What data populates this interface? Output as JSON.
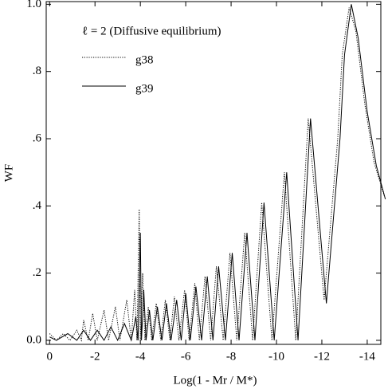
{
  "chart_data": {
    "type": "line",
    "annotation": "ℓ = 2 (Diffusive equilibrium)",
    "xlabel": "Log(1 - Mr / M*)",
    "ylabel": "WF",
    "xlim": [
      0.15,
      -14.6
    ],
    "ylim": [
      -0.012,
      1.008
    ],
    "xticks": [
      0,
      -2,
      -4,
      -6,
      -8,
      -10,
      -12,
      -14
    ],
    "yticks": [
      {
        "value": 0,
        "label": "0.0"
      },
      {
        "value": 0.2,
        "label": ".2"
      },
      {
        "value": 0.4,
        "label": ".4"
      },
      {
        "value": 0.6,
        "label": ".6"
      },
      {
        "value": 0.8,
        "label": ".8"
      },
      {
        "value": 1.0,
        "label": "1.0"
      }
    ],
    "series": [
      {
        "name": "g38",
        "color": "#000000",
        "style": "dotted",
        "x": [
          0.0,
          -0.3,
          -0.6,
          -0.9,
          -1.2,
          -1.4,
          -1.5,
          -1.7,
          -1.9,
          -2.1,
          -2.4,
          -2.6,
          -2.9,
          -3.1,
          -3.4,
          -3.6,
          -3.75,
          -3.85,
          -3.95,
          -4.0,
          -4.1,
          -4.2,
          -4.35,
          -4.5,
          -4.7,
          -4.9,
          -5.1,
          -5.3,
          -5.5,
          -5.7,
          -5.95,
          -6.15,
          -6.4,
          -6.6,
          -6.85,
          -7.1,
          -7.35,
          -7.65,
          -7.95,
          -8.25,
          -8.6,
          -8.95,
          -9.35,
          -9.8,
          -10.35,
          -10.85,
          -11.4,
          -12.1,
          -12.7,
          -12.9,
          -13.2,
          -13.5,
          -13.9,
          -14.3,
          -14.75
        ],
        "values": [
          0.02,
          0.0,
          0.02,
          0.0,
          0.03,
          0.0,
          0.06,
          0.0,
          0.08,
          0.0,
          0.09,
          0.0,
          0.1,
          0.0,
          0.12,
          0.0,
          0.15,
          0.0,
          0.39,
          0.0,
          0.2,
          0.0,
          0.1,
          0.0,
          0.11,
          0.0,
          0.12,
          0.0,
          0.13,
          0.0,
          0.15,
          0.0,
          0.17,
          0.0,
          0.19,
          0.0,
          0.22,
          0.0,
          0.26,
          0.0,
          0.32,
          0.0,
          0.41,
          0.0,
          0.5,
          0.0,
          0.66,
          0.12,
          0.6,
          0.85,
          0.99,
          0.92,
          0.7,
          0.53,
          0.43
        ]
      },
      {
        "name": "g39",
        "color": "#000000",
        "style": "solid",
        "x": [
          0.0,
          -0.3,
          -0.8,
          -1.2,
          -1.5,
          -1.8,
          -2.1,
          -2.4,
          -2.7,
          -3.0,
          -3.3,
          -3.6,
          -3.8,
          -3.9,
          -4.0,
          -4.05,
          -4.15,
          -4.25,
          -4.4,
          -4.55,
          -4.75,
          -4.95,
          -5.15,
          -5.35,
          -5.6,
          -5.8,
          -6.0,
          -6.2,
          -6.45,
          -6.7,
          -6.95,
          -7.2,
          -7.45,
          -7.75,
          -8.05,
          -8.35,
          -8.7,
          -9.05,
          -9.45,
          -9.9,
          -10.45,
          -10.95,
          -11.5,
          -12.2,
          -12.8,
          -13.0,
          -13.3,
          -13.6,
          -14.0,
          -14.4,
          -14.8
        ],
        "values": [
          0.01,
          0.0,
          0.02,
          0.0,
          0.03,
          0.0,
          0.03,
          0.0,
          0.04,
          0.0,
          0.05,
          0.0,
          0.07,
          0.0,
          0.32,
          0.0,
          0.15,
          0.0,
          0.09,
          0.0,
          0.1,
          0.0,
          0.11,
          0.0,
          0.12,
          0.0,
          0.14,
          0.0,
          0.16,
          0.0,
          0.19,
          0.0,
          0.22,
          0.0,
          0.26,
          0.0,
          0.32,
          0.0,
          0.41,
          0.0,
          0.5,
          0.0,
          0.66,
          0.11,
          0.6,
          0.85,
          1.0,
          0.9,
          0.68,
          0.52,
          0.42
        ]
      }
    ]
  }
}
